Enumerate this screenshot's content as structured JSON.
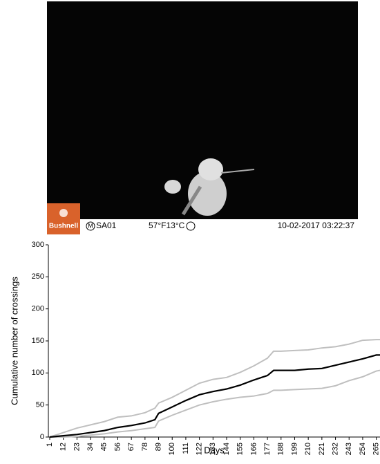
{
  "photo": {
    "brand": "Bushnell",
    "mode": "M",
    "camera": "SA01",
    "temperature": "57°F13°C",
    "timestamp": "10-02-2017 03:22:37"
  },
  "chart_data": {
    "type": "line",
    "x_label": "Days",
    "y_label": "Cumulative number of crossings",
    "x": [
      1,
      12,
      23,
      34,
      45,
      56,
      67,
      78,
      86,
      89,
      100,
      111,
      122,
      133,
      144,
      155,
      166,
      177,
      182,
      188,
      199,
      210,
      221,
      232,
      243,
      254,
      265,
      268
    ],
    "series": [
      {
        "color": "#bfbfbf",
        "values": [
          0,
          7,
          14,
          19,
          24,
          31,
          33,
          38,
          45,
          53,
          62,
          73,
          84,
          90,
          93,
          101,
          111,
          123,
          134,
          134,
          135,
          136,
          139,
          141,
          145,
          151,
          152,
          152
        ]
      },
      {
        "color": "#bfbfbf",
        "values": [
          0,
          0,
          1,
          3,
          5,
          8,
          10,
          13,
          15,
          25,
          34,
          42,
          50,
          55,
          59,
          62,
          64,
          68,
          73,
          73,
          74,
          75,
          76,
          80,
          88,
          94,
          103,
          104
        ]
      },
      {
        "color": "#000000",
        "values": [
          0,
          2,
          4,
          7,
          10,
          15,
          18,
          22,
          27,
          37,
          47,
          57,
          66,
          71,
          75,
          81,
          89,
          96,
          104,
          104,
          104,
          106,
          107,
          112,
          117,
          122,
          128,
          128
        ]
      }
    ],
    "xlim": [
      1,
      268
    ],
    "xticks": [
      1,
      12,
      23,
      34,
      45,
      56,
      67,
      78,
      89,
      100,
      111,
      122,
      133,
      144,
      155,
      166,
      177,
      188,
      199,
      210,
      221,
      232,
      243,
      254,
      265
    ],
    "ylim": [
      0,
      300
    ],
    "yticks": [
      0,
      50,
      100,
      150,
      200,
      250,
      300
    ],
    "grid": false
  }
}
